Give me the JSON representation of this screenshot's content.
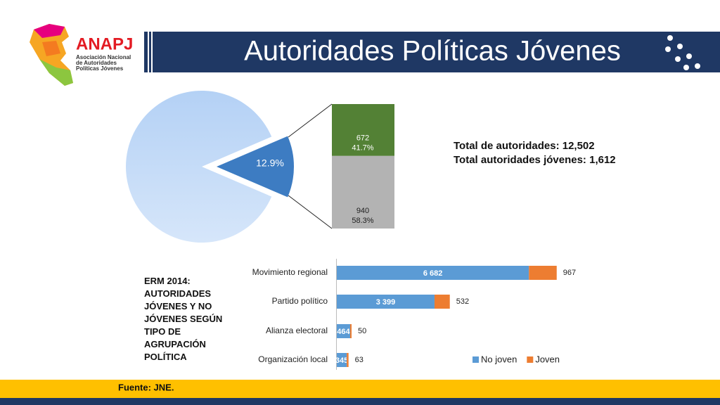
{
  "header": {
    "logo": "ANAPJ",
    "logo_subtitle": [
      "Asociación Nacional",
      "de Autoridades",
      "Políticas Jóvenes"
    ],
    "title": "Autoridades Políticas Jóvenes"
  },
  "chart_data": [
    {
      "type": "pie",
      "values": [
        87.1,
        12.9
      ],
      "value_labels": [
        null,
        "12.9%"
      ],
      "colors": [
        "#b4d1f5",
        "#3d7cc2"
      ]
    },
    {
      "type": "stacked-column",
      "values": [
        672,
        940
      ],
      "shares": [
        41.7,
        58.3
      ],
      "share_labels": [
        "41.7%",
        "58.3%"
      ],
      "colors": [
        "#538135",
        "#b3b3b3"
      ]
    },
    {
      "type": "bar",
      "orientation": "horizontal",
      "stacked": true,
      "title": "ERM 2014: AUTORIDADES JÓVENES Y NO JÓVENES SEGÚN TIPO DE AGRUPACIÓN POLÍTICA",
      "categories": [
        "Movimiento regional",
        "Partido político",
        "Alianza electoral",
        "Organización local"
      ],
      "series": [
        {
          "name": "No joven",
          "color": "#5b9bd5",
          "values": [
            6682,
            3399,
            464,
            345
          ],
          "value_labels": [
            "6 682",
            "3 399",
            "464",
            "345"
          ]
        },
        {
          "name": "Joven",
          "color": "#ed7d31",
          "values": [
            967,
            532,
            50,
            63
          ]
        }
      ],
      "xlim": [
        0,
        9000
      ],
      "legend": "bottom-right"
    }
  ],
  "annotations": [
    "Total de autoridades: 12,502",
    "Total autoridades jóvenes: 1,612"
  ],
  "footer": {
    "source": "Fuente: JNE."
  }
}
